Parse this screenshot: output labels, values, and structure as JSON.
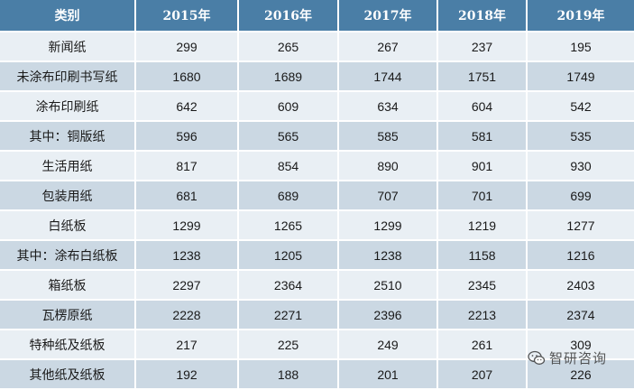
{
  "header": {
    "category": "类别",
    "years": [
      "2015年",
      "2016年",
      "2017年",
      "2018年",
      "2019年"
    ]
  },
  "rows": [
    {
      "name": "新闻纸",
      "values": [
        "299",
        "265",
        "267",
        "237",
        "195"
      ]
    },
    {
      "name": "未涂布印刷书写纸",
      "values": [
        "1680",
        "1689",
        "1744",
        "1751",
        "1749"
      ]
    },
    {
      "name": "涂布印刷纸",
      "values": [
        "642",
        "609",
        "634",
        "604",
        "542"
      ]
    },
    {
      "name": "其中：铜版纸",
      "values": [
        "596",
        "565",
        "585",
        "581",
        "535"
      ]
    },
    {
      "name": "生活用纸",
      "values": [
        "817",
        "854",
        "890",
        "901",
        "930"
      ]
    },
    {
      "name": "包装用纸",
      "values": [
        "681",
        "689",
        "707",
        "701",
        "699"
      ]
    },
    {
      "name": "白纸板",
      "values": [
        "1299",
        "1265",
        "1299",
        "1219",
        "1277"
      ]
    },
    {
      "name": "其中：涂布白纸板",
      "values": [
        "1238",
        "1205",
        "1238",
        "1158",
        "1216"
      ]
    },
    {
      "name": "箱纸板",
      "values": [
        "2297",
        "2364",
        "2510",
        "2345",
        "2403"
      ]
    },
    {
      "name": "瓦楞原纸",
      "values": [
        "2228",
        "2271",
        "2396",
        "2213",
        "2374"
      ]
    },
    {
      "name": "特种纸及纸板",
      "values": [
        "217",
        "225",
        "249",
        "261",
        "309"
      ]
    },
    {
      "name": "其他纸及纸板",
      "values": [
        "192",
        "188",
        "201",
        "207",
        "226"
      ]
    }
  ],
  "watermark": {
    "text": "智研咨询",
    "icon": "wechat-icon"
  },
  "colors": {
    "header_bg": "#4a7ea6",
    "row_light": "#e9eff4",
    "row_dark": "#cbd8e3"
  }
}
